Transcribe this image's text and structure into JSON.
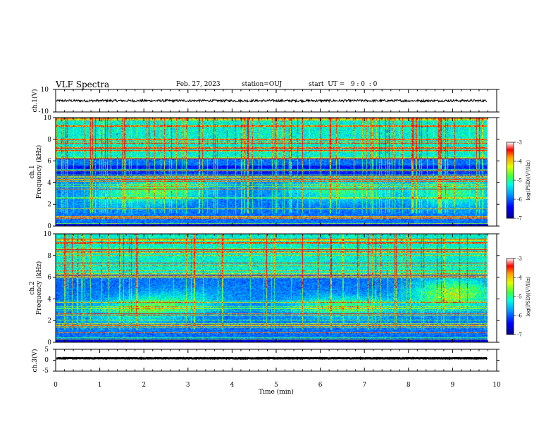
{
  "header": {
    "title": "VLF Spectra",
    "date": "Feb. 27, 2023",
    "station": "station=OUJ",
    "start": "start  UT =   9 : 0  : 0"
  },
  "chart_data": [
    {
      "type": "line",
      "panel": "ch1-waveform",
      "ylabel": "ch.1(V)",
      "ylim": [
        -10,
        10
      ],
      "yticks": [
        10,
        -10
      ],
      "xlim": [
        0,
        10
      ],
      "baseline": 0,
      "noise_amplitude": 1
    },
    {
      "type": "heatmap",
      "panel": "ch1-spectrogram",
      "ylabel": "ch.1\nFrequency  (kHz)",
      "ylabel_lines": [
        "ch.1",
        "Frequency  (kHz)"
      ],
      "ylim": [
        0,
        10
      ],
      "yticks": [
        0,
        2,
        4,
        6,
        8,
        10
      ],
      "xlim": [
        0,
        10
      ],
      "data_end_min": 9.8,
      "colorbar": {
        "label": "log(PSD)(V²/Hz)",
        "range": [
          -7,
          -3
        ],
        "ticks": [
          -3,
          -4,
          -5,
          -6,
          -7
        ]
      }
    },
    {
      "type": "heatmap",
      "panel": "ch2-spectrogram",
      "ylabel": "ch.2\nFrequency  (kHz)",
      "ylabel_lines": [
        "ch.2",
        "Frequency  (kHz)"
      ],
      "ylim": [
        0,
        10
      ],
      "yticks": [
        0,
        2,
        4,
        6,
        8,
        10
      ],
      "xlim": [
        0,
        10
      ],
      "data_end_min": 9.8,
      "colorbar": {
        "label": "log(PSD)(V²/Hz)",
        "range": [
          -7,
          -3
        ],
        "ticks": [
          -3,
          -4,
          -5,
          -6,
          -7
        ]
      }
    },
    {
      "type": "line",
      "panel": "ch3-waveform",
      "ylabel": "ch.3(V)",
      "ylim": [
        -5,
        5
      ],
      "yticks": [
        5,
        0,
        -5
      ],
      "xlim": [
        0,
        10
      ],
      "baseline": 0,
      "xlabel": "Time  (min)",
      "xticks": [
        0,
        1,
        2,
        3,
        4,
        5,
        6,
        7,
        8,
        9,
        10
      ]
    }
  ],
  "colors": {
    "spectrum_low": "#00008f",
    "spectrum_mid": "#00ffb0",
    "spectrum_high": "#ff0000",
    "trace": "#000000"
  }
}
